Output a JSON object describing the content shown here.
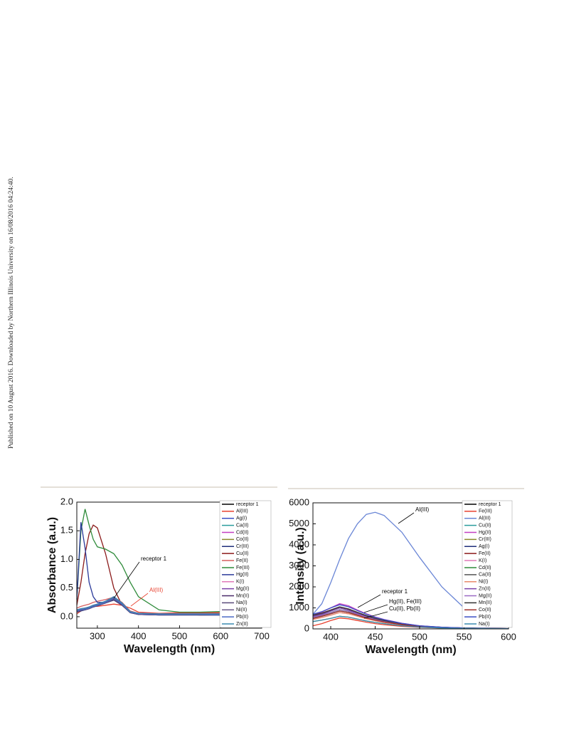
{
  "side_note": "Published on 10 August 2016. Downloaded by Northern Illinois University on 16/08/2016 04:24:40.",
  "chart_data": [
    {
      "type": "line",
      "ylabel": "Absorbance (a.u.)",
      "xlabel": "Wavelength (nm)",
      "xlim": [
        250,
        700
      ],
      "xticks": [
        300,
        400,
        500,
        600,
        700
      ],
      "ylim": [
        -0.2,
        2.0
      ],
      "yticks": [
        {
          "value": 0,
          "label": "0.0"
        },
        0.5,
        {
          "value": 1,
          "label": "1.0"
        },
        1.5,
        {
          "value": 2,
          "label": "2.0"
        }
      ],
      "x": [
        250,
        260,
        270,
        280,
        290,
        300,
        320,
        340,
        360,
        380,
        400,
        450,
        500,
        550,
        600
      ],
      "series": [
        {
          "name": "receptor 1",
          "color": "#000000",
          "values": [
            0.1,
            0.12,
            0.13,
            0.15,
            0.18,
            0.2,
            0.25,
            0.32,
            0.22,
            0.08,
            0.05,
            0.04,
            0.04,
            0.04,
            0.03
          ]
        },
        {
          "name": "Al(III)",
          "color": "#e8412f",
          "values": [
            0.05,
            0.1,
            0.15,
            0.17,
            0.18,
            0.18,
            0.2,
            0.22,
            0.2,
            0.15,
            0.08,
            0.06,
            0.07,
            0.07,
            0.07
          ]
        },
        {
          "name": "Ag(I)",
          "color": "#3b4fc4",
          "values": [
            0.08,
            0.11,
            0.12,
            0.14,
            0.17,
            0.19,
            0.24,
            0.3,
            0.2,
            0.07,
            0.04,
            0.03,
            0.03,
            0.03,
            0.03
          ]
        },
        {
          "name": "Ca(II)",
          "color": "#2a9d9d",
          "values": [
            0.1,
            0.13,
            0.14,
            0.16,
            0.19,
            0.21,
            0.26,
            0.33,
            0.23,
            0.08,
            0.05,
            0.04,
            0.04,
            0.04,
            0.04
          ]
        },
        {
          "name": "Cd(II)",
          "color": "#c23fc2",
          "values": [
            0.12,
            0.14,
            0.15,
            0.17,
            0.2,
            0.22,
            0.27,
            0.35,
            0.24,
            0.09,
            0.06,
            0.05,
            0.05,
            0.05,
            0.05
          ]
        },
        {
          "name": "Co(II)",
          "color": "#8a8a2a",
          "values": [
            0.09,
            0.12,
            0.13,
            0.15,
            0.18,
            0.2,
            0.25,
            0.31,
            0.21,
            0.07,
            0.05,
            0.04,
            0.04,
            0.03,
            0.03
          ]
        },
        {
          "name": "Cr(III)",
          "color": "#1f2f7a",
          "values": [
            0.08,
            0.1,
            0.12,
            0.14,
            0.17,
            0.19,
            0.24,
            0.29,
            0.2,
            0.07,
            0.04,
            0.03,
            0.03,
            0.03,
            0.03
          ]
        },
        {
          "name": "Cu(II)",
          "color": "#8b1a1a",
          "values": [
            0.2,
            0.6,
            1.1,
            1.45,
            1.6,
            1.55,
            1.1,
            0.5,
            0.2,
            0.08,
            0.05,
            0.04,
            0.04,
            0.04,
            0.04
          ]
        },
        {
          "name": "Fe(II)",
          "color": "#d65f5f",
          "values": [
            0.15,
            0.18,
            0.2,
            0.22,
            0.25,
            0.27,
            0.3,
            0.34,
            0.25,
            0.1,
            0.06,
            0.05,
            0.05,
            0.05,
            0.05
          ]
        },
        {
          "name": "Fe(III)",
          "color": "#2e8b3a",
          "values": [
            0.3,
            1.5,
            1.88,
            1.6,
            1.35,
            1.22,
            1.18,
            1.1,
            0.9,
            0.6,
            0.35,
            0.12,
            0.08,
            0.08,
            0.09
          ]
        },
        {
          "name": "Hg(II)",
          "color": "#2b3a9a",
          "values": [
            0.3,
            1.65,
            1.2,
            0.6,
            0.35,
            0.25,
            0.25,
            0.3,
            0.2,
            0.08,
            0.05,
            0.04,
            0.04,
            0.04,
            0.04
          ]
        },
        {
          "name": "K(I)",
          "color": "#e07ab8",
          "values": [
            0.1,
            0.13,
            0.14,
            0.16,
            0.19,
            0.21,
            0.26,
            0.33,
            0.23,
            0.08,
            0.05,
            0.04,
            0.04,
            0.04,
            0.04
          ]
        },
        {
          "name": "Mg(II)",
          "color": "#7a3fa8",
          "values": [
            0.12,
            0.14,
            0.15,
            0.17,
            0.2,
            0.22,
            0.27,
            0.35,
            0.24,
            0.09,
            0.06,
            0.05,
            0.05,
            0.05,
            0.05
          ]
        },
        {
          "name": "Mn(II)",
          "color": "#4a2a6a",
          "values": [
            0.09,
            0.12,
            0.13,
            0.15,
            0.18,
            0.2,
            0.25,
            0.31,
            0.21,
            0.07,
            0.05,
            0.04,
            0.04,
            0.03,
            0.03
          ]
        },
        {
          "name": "Na(I)",
          "color": "#5a4a7a",
          "values": [
            0.08,
            0.11,
            0.12,
            0.14,
            0.17,
            0.19,
            0.24,
            0.3,
            0.2,
            0.07,
            0.04,
            0.03,
            0.03,
            0.03,
            0.03
          ]
        },
        {
          "name": "Ni(II)",
          "color": "#6a5a8a",
          "values": [
            0.1,
            0.13,
            0.14,
            0.16,
            0.19,
            0.21,
            0.26,
            0.33,
            0.23,
            0.08,
            0.05,
            0.04,
            0.04,
            0.04,
            0.04
          ]
        },
        {
          "name": "Pb(II)",
          "color": "#4a6ac4",
          "values": [
            0.1,
            0.12,
            0.13,
            0.15,
            0.18,
            0.2,
            0.25,
            0.32,
            0.22,
            0.08,
            0.05,
            0.04,
            0.04,
            0.04,
            0.03
          ]
        },
        {
          "name": "Zn(II)",
          "color": "#3a8ab0",
          "values": [
            0.12,
            0.14,
            0.15,
            0.17,
            0.2,
            0.22,
            0.27,
            0.35,
            0.24,
            0.09,
            0.06,
            0.05,
            0.05,
            0.05,
            0.05
          ]
        }
      ],
      "annotations": [
        {
          "text": "receptor 1",
          "color": "#000000"
        },
        {
          "text": "Al(III)",
          "color": "#e8412f"
        }
      ]
    },
    {
      "type": "line",
      "ylabel": "Intensity (a.u.)",
      "xlabel": "Wavelength (nm)",
      "xlim": [
        380,
        600
      ],
      "xticks": [
        400,
        450,
        500,
        550,
        600
      ],
      "ylim": [
        0,
        6000
      ],
      "yticks": [
        0,
        1000,
        2000,
        3000,
        4000,
        5000,
        6000
      ],
      "x": [
        380,
        390,
        400,
        410,
        420,
        430,
        440,
        450,
        460,
        480,
        500,
        525,
        550,
        575,
        600
      ],
      "series": [
        {
          "name": "receptor 1",
          "color": "#000000",
          "values": [
            600,
            700,
            850,
            1000,
            900,
            750,
            600,
            480,
            380,
            230,
            130,
            70,
            40,
            20,
            10
          ]
        },
        {
          "name": "Fe(III)",
          "color": "#e8412f",
          "values": [
            150,
            250,
            400,
            520,
            480,
            400,
            320,
            250,
            200,
            120,
            70,
            40,
            20,
            10,
            5
          ]
        },
        {
          "name": "Al(III)",
          "color": "#6a86d6",
          "values": [
            700,
            1200,
            2200,
            3300,
            4300,
            5000,
            5450,
            5550,
            5400,
            4600,
            3400,
            2000,
            1000,
            450,
            180
          ]
        },
        {
          "name": "Cu(II)",
          "color": "#2a9d9d",
          "values": [
            550,
            650,
            780,
            920,
            840,
            700,
            560,
            450,
            350,
            210,
            120,
            65,
            35,
            18,
            9
          ]
        },
        {
          "name": "Hg(II)",
          "color": "#c23fc2",
          "values": [
            650,
            800,
            1000,
            1200,
            1100,
            900,
            720,
            570,
            450,
            270,
            150,
            80,
            45,
            25,
            12
          ]
        },
        {
          "name": "Cr(III)",
          "color": "#8a8a2a",
          "values": [
            350,
            420,
            500,
            600,
            560,
            470,
            380,
            310,
            250,
            150,
            85,
            45,
            25,
            12,
            6
          ]
        },
        {
          "name": "Ag(I)",
          "color": "#1f2f7a",
          "values": [
            500,
            600,
            720,
            850,
            780,
            650,
            520,
            420,
            330,
            200,
            110,
            60,
            32,
            16,
            8
          ]
        },
        {
          "name": "Fe(II)",
          "color": "#8b1a1a",
          "values": [
            650,
            750,
            900,
            1050,
            950,
            790,
            630,
            500,
            400,
            240,
            140,
            75,
            42,
            22,
            11
          ]
        },
        {
          "name": "K(I)",
          "color": "#e07ab8",
          "values": [
            450,
            540,
            650,
            780,
            720,
            600,
            480,
            390,
            310,
            190,
            105,
            55,
            30,
            15,
            7
          ]
        },
        {
          "name": "Cd(II)",
          "color": "#2e8b3a",
          "values": [
            550,
            650,
            780,
            920,
            840,
            700,
            560,
            450,
            350,
            210,
            120,
            65,
            35,
            18,
            9
          ]
        },
        {
          "name": "Ca(II)",
          "color": "#555555",
          "values": [
            500,
            600,
            720,
            850,
            780,
            650,
            520,
            420,
            330,
            200,
            110,
            60,
            32,
            16,
            8
          ]
        },
        {
          "name": "Ni(I)",
          "color": "#e88a6a",
          "values": [
            450,
            540,
            650,
            780,
            720,
            600,
            480,
            390,
            310,
            190,
            105,
            55,
            30,
            15,
            7
          ]
        },
        {
          "name": "Zn(II)",
          "color": "#7a3fa8",
          "values": [
            600,
            700,
            850,
            1000,
            900,
            750,
            600,
            480,
            380,
            230,
            130,
            70,
            40,
            20,
            10
          ]
        },
        {
          "name": "Mg(II)",
          "color": "#9a6ac4",
          "values": [
            550,
            650,
            780,
            920,
            840,
            700,
            560,
            450,
            350,
            210,
            120,
            65,
            35,
            18,
            9
          ]
        },
        {
          "name": "Mn(II)",
          "color": "#333333",
          "values": [
            650,
            750,
            900,
            1050,
            950,
            790,
            630,
            500,
            400,
            240,
            140,
            75,
            42,
            22,
            11
          ]
        },
        {
          "name": "Co(II)",
          "color": "#a0302a",
          "values": [
            500,
            600,
            720,
            850,
            780,
            650,
            520,
            420,
            330,
            200,
            110,
            60,
            32,
            16,
            8
          ]
        },
        {
          "name": "Pb(II)",
          "color": "#3b4fc4",
          "values": [
            700,
            820,
            1000,
            1150,
            1050,
            870,
            700,
            550,
            440,
            260,
            145,
            78,
            44,
            24,
            12
          ]
        },
        {
          "name": "Na(I)",
          "color": "#3a8ab0",
          "values": [
            350,
            420,
            500,
            600,
            560,
            470,
            380,
            310,
            250,
            150,
            85,
            45,
            25,
            12,
            6
          ]
        }
      ],
      "annotations": [
        {
          "text": "Al(III)",
          "color": "#000000"
        },
        {
          "text": "receptor 1",
          "color": "#000000"
        },
        {
          "text": "Hg(II), Fe(III)",
          "color": "#000000"
        },
        {
          "text": "Cu(II), Pb(II)",
          "color": "#000000"
        }
      ]
    }
  ]
}
